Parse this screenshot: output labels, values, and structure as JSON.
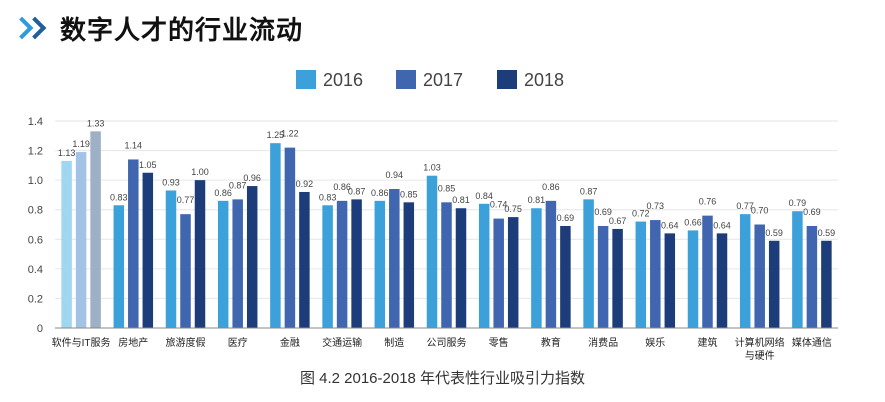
{
  "header": {
    "title": "数字人才的行业流动",
    "icon": "double-chevron-icon"
  },
  "caption": "图 4.2 2016-2018 年代表性行业吸引力指数",
  "colors": {
    "s2016": "#3CA0DB",
    "s2017": "#3F66AE",
    "s2018": "#1D3D7A",
    "first_group": [
      "#9ED7EF",
      "#A3C3E6",
      "#9DB0C5"
    ],
    "axis": "#555555",
    "grid": "#E6E6E6"
  },
  "chart_data": {
    "type": "bar",
    "title": "",
    "xlabel": "",
    "ylabel": "",
    "ylim": [
      0,
      1.4
    ],
    "yticks": [
      "0",
      "0.2",
      "0.4",
      "0.6",
      "0.8",
      "1.0",
      "1.2",
      "1.4"
    ],
    "legend_position": "top-center",
    "categories": [
      "软件与IT服务",
      "房地产",
      "旅游度假",
      "医疗",
      "金融",
      "交通运输",
      "制造",
      "公司服务",
      "零售",
      "教育",
      "消费品",
      "娱乐",
      "建筑",
      "计算机网络与硬件",
      "媒体通信"
    ],
    "category_labels": [
      [
        "软件与IT服务"
      ],
      [
        "房地产"
      ],
      [
        "旅游度假"
      ],
      [
        "医疗"
      ],
      [
        "金融"
      ],
      [
        "交通运输"
      ],
      [
        "制造"
      ],
      [
        "公司服务"
      ],
      [
        "零售"
      ],
      [
        "教育"
      ],
      [
        "消费品"
      ],
      [
        "娱乐"
      ],
      [
        "建筑"
      ],
      [
        "计算机网络",
        "与硬件"
      ],
      [
        "媒体通信"
      ]
    ],
    "series": [
      {
        "name": "2016",
        "values": [
          1.13,
          0.83,
          0.93,
          0.86,
          1.25,
          0.83,
          0.86,
          1.03,
          0.84,
          0.81,
          0.87,
          0.72,
          0.66,
          0.77,
          0.79
        ]
      },
      {
        "name": "2017",
        "values": [
          1.19,
          1.14,
          0.77,
          0.87,
          1.22,
          0.86,
          0.94,
          0.85,
          0.74,
          0.86,
          0.69,
          0.73,
          0.76,
          0.7,
          0.69
        ]
      },
      {
        "name": "2018",
        "values": [
          1.33,
          1.05,
          1.0,
          0.96,
          0.92,
          0.87,
          0.85,
          0.81,
          0.75,
          0.69,
          0.67,
          0.64,
          0.64,
          0.59,
          0.59
        ]
      }
    ],
    "value_labels": [
      [
        "1.13",
        "0.83",
        "0.93",
        "0.86",
        "1.25",
        "0.83",
        "0.86",
        "1.03",
        "0.84",
        "0.81",
        "0.87",
        "0.72",
        "0.66",
        "0.77",
        "0.79"
      ],
      [
        "1.19",
        "1.14",
        "0.77",
        "0.87",
        "1.22",
        "0.86",
        "0.94",
        "0.85",
        "0.74",
        "0.86",
        "0.69",
        "0.73",
        "0.76",
        "0.70",
        "0.69"
      ],
      [
        "1.33",
        "1.05",
        "1.00",
        "0.96",
        "0.92",
        "0.87",
        "0.85",
        "0.81",
        "0.75",
        "0.69",
        "0.67",
        "0.64",
        "0.64",
        "0.59",
        "0.59"
      ]
    ]
  }
}
